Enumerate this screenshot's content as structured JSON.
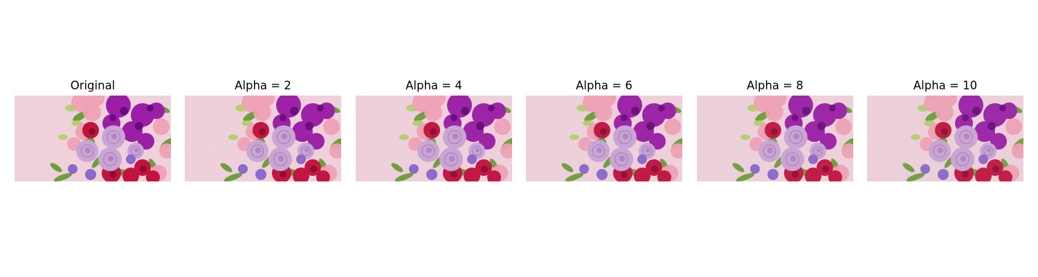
{
  "figure": {
    "panels": [
      {
        "title": "Original",
        "noise": 0
      },
      {
        "title": "Alpha = 2",
        "noise": 2
      },
      {
        "title": "Alpha = 4",
        "noise": 4
      },
      {
        "title": "Alpha = 6",
        "noise": 6
      },
      {
        "title": "Alpha = 8",
        "noise": 8
      },
      {
        "title": "Alpha = 10",
        "noise": 10
      }
    ]
  },
  "colors": {
    "background": "#efd1dc",
    "rose_lavender": "#c9a5d4",
    "rose_purple": "#b283c4",
    "stock_magenta": "#9b1fa6",
    "stock_deep": "#6a0a7c",
    "carnation_red": "#c2133f",
    "carnation_dark": "#8c0c2e",
    "snapdragon_pink": "#f0a0b4",
    "lisianthus_violet": "#8a68cc",
    "foliage_green": "#6f9e3c",
    "foliage_light": "#b9cf6e"
  }
}
